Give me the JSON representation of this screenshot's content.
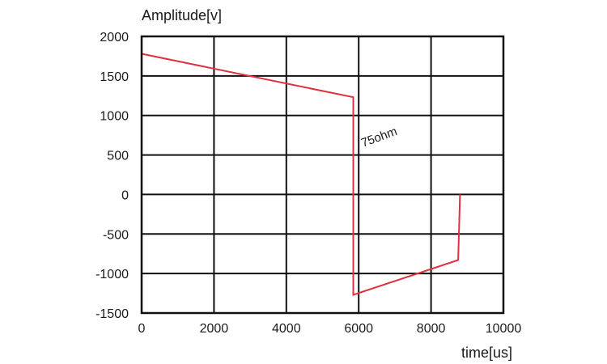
{
  "chart_data": {
    "type": "line",
    "ylabel": "Amplitude[v]",
    "xlabel": "time[us]",
    "xlim": [
      0,
      10000
    ],
    "ylim": [
      -1500,
      2000
    ],
    "x_ticks": [
      0,
      2000,
      4000,
      6000,
      8000,
      10000
    ],
    "y_ticks": [
      -1500,
      -1000,
      -500,
      0,
      500,
      1000,
      1500,
      2000
    ],
    "grid": true,
    "series": [
      {
        "color": "#e0303f",
        "x": [
          0,
          5850,
          5850,
          5850,
          8750,
          8800
        ],
        "y": [
          1780,
          1230,
          1230,
          -1270,
          -830,
          0
        ]
      }
    ],
    "annotations": [
      {
        "text": "75ohm",
        "x": 6600,
        "y": 680
      }
    ]
  }
}
